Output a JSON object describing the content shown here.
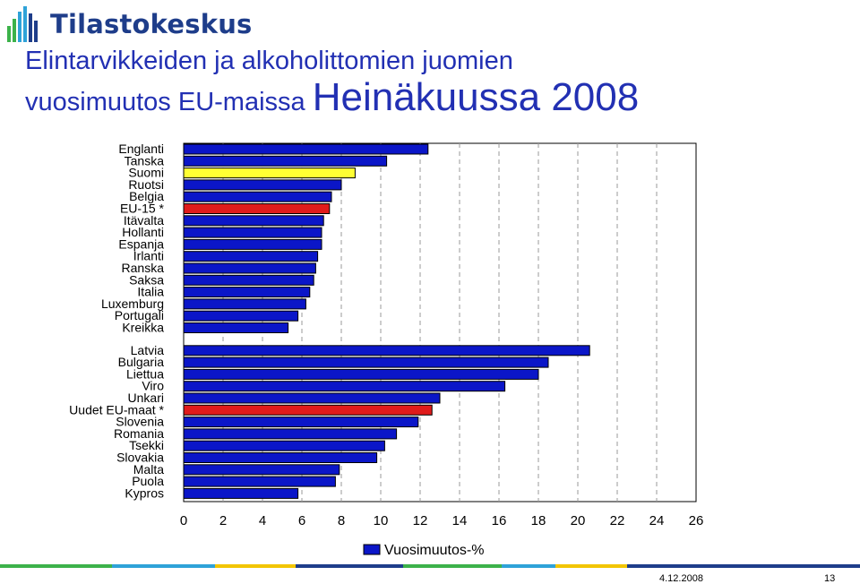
{
  "header": {
    "logo_text": "Tilastokeskus",
    "title_line1": "Elintarvikkeiden ja alkoholittomien juomien",
    "title_line2a": "vuosimuutos EU-maissa ",
    "title_line2b": "Heinäkuussa 2008"
  },
  "footer": {
    "date": "4.12.2008",
    "page": "13"
  },
  "colors": {
    "bar": "#0b16c8",
    "highlight_red": "#e01b1b",
    "highlight_yellow": "#ffff33",
    "title": "#2230b3"
  },
  "chart_data": {
    "type": "bar",
    "orientation": "horizontal",
    "legend": {
      "label": "Vuosimuutos-%",
      "placement": "bottom"
    },
    "xlim": [
      0,
      26
    ],
    "xticks": [
      "0",
      "2",
      "4",
      "6",
      "8",
      "10",
      "12",
      "14",
      "16",
      "18",
      "20",
      "22",
      "24",
      "26"
    ],
    "grid": "vertical dashed",
    "groups": [
      {
        "categories": [
          "Englanti",
          "Tanska",
          "Suomi",
          "Ruotsi",
          "Belgia",
          "EU-15 *",
          "Itävalta",
          "Hollanti",
          "Espanja",
          "Irlanti",
          "Ranska",
          "Saksa",
          "Italia",
          "Luxemburg",
          "Portugali",
          "Kreikka"
        ],
        "values": [
          12.4,
          10.3,
          8.7,
          8.0,
          7.5,
          7.4,
          7.1,
          7.0,
          7.0,
          6.8,
          6.7,
          6.6,
          6.4,
          6.2,
          5.8,
          5.3
        ],
        "highlights": {
          "Suomi": "yellow",
          "EU-15 *": "red"
        }
      },
      {
        "categories": [
          "Latvia",
          "Bulgaria",
          "Liettua",
          "Viro",
          "Unkari",
          "Uudet EU-maat *",
          "Slovenia",
          "Romania",
          "Tsekki",
          "Slovakia",
          "Malta",
          "Puola",
          "Kypros"
        ],
        "values": [
          20.6,
          18.5,
          18.0,
          16.3,
          13.0,
          12.6,
          11.9,
          10.8,
          10.2,
          9.8,
          7.9,
          7.7,
          5.8
        ],
        "highlights": {
          "Uudet EU-maat *": "red"
        }
      }
    ]
  }
}
